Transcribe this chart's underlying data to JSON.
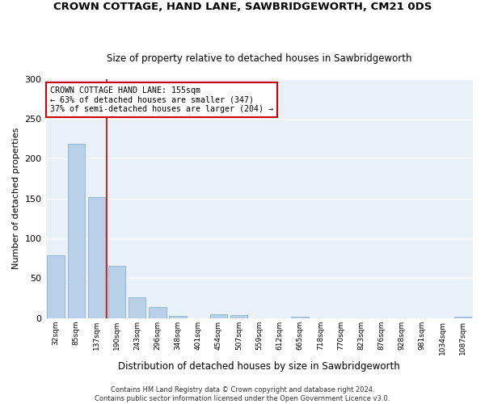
{
  "title": "CROWN COTTAGE, HAND LANE, SAWBRIDGEWORTH, CM21 0DS",
  "subtitle": "Size of property relative to detached houses in Sawbridgeworth",
  "xlabel": "Distribution of detached houses by size in Sawbridgeworth",
  "ylabel": "Number of detached properties",
  "bar_color": "#b8d0e8",
  "bar_edge_color": "#7aaac8",
  "background_color": "#e8f0f8",
  "grid_color": "#ffffff",
  "fig_background": "#ffffff",
  "categories": [
    "32sqm",
    "85sqm",
    "137sqm",
    "190sqm",
    "243sqm",
    "296sqm",
    "348sqm",
    "401sqm",
    "454sqm",
    "507sqm",
    "559sqm",
    "612sqm",
    "665sqm",
    "718sqm",
    "770sqm",
    "823sqm",
    "876sqm",
    "928sqm",
    "981sqm",
    "1034sqm",
    "1087sqm"
  ],
  "values": [
    79,
    219,
    152,
    66,
    26,
    14,
    3,
    0,
    5,
    4,
    0,
    0,
    2,
    0,
    0,
    0,
    0,
    0,
    0,
    0,
    2
  ],
  "vline_color": "#cc0000",
  "vline_x_index": 2.5,
  "annotation_text": "CROWN COTTAGE HAND LANE: 155sqm\n← 63% of detached houses are smaller (347)\n37% of semi-detached houses are larger (204) →",
  "annotation_box_color": "#ffffff",
  "annotation_box_edge_color": "#cc0000",
  "footnote_line1": "Contains HM Land Registry data © Crown copyright and database right 2024.",
  "footnote_line2": "Contains public sector information licensed under the Open Government Licence v3.0.",
  "ylim": [
    0,
    300
  ],
  "yticks": [
    0,
    50,
    100,
    150,
    200,
    250,
    300
  ]
}
